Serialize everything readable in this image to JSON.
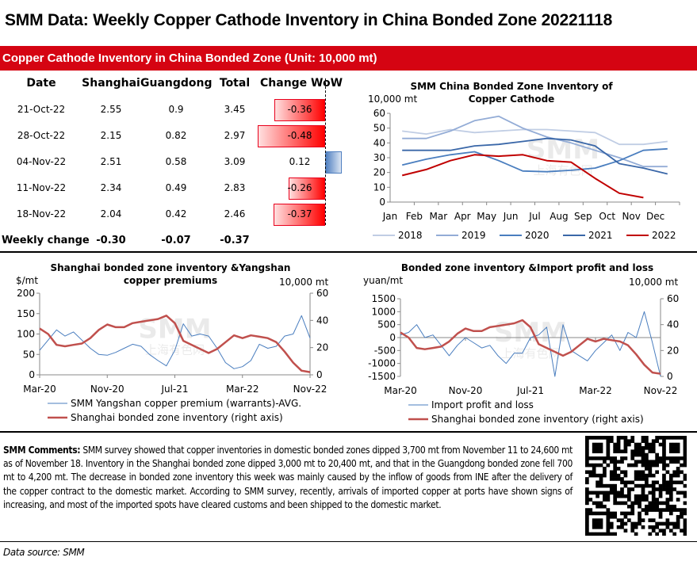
{
  "header": {
    "title": "SMM Data: Weekly Copper Cathode Inventory in China Bonded Zone  20221118",
    "banner": "Copper Cathode Inventory in China Bonded Zone (Unit: 10,000 mt)"
  },
  "table": {
    "columns": [
      "Date",
      "Shanghai",
      "Guangdong",
      "Total",
      "Change WoW"
    ],
    "rows": [
      {
        "date": "21-Oct-22",
        "shanghai": "2.55",
        "guangdong": "0.9",
        "total": "3.45",
        "change": "-0.36",
        "change_value": -0.36
      },
      {
        "date": "28-Oct-22",
        "shanghai": "2.15",
        "guangdong": "0.82",
        "total": "2.97",
        "change": "-0.48",
        "change_value": -0.48
      },
      {
        "date": "04-Nov-22",
        "shanghai": "2.51",
        "guangdong": "0.58",
        "total": "3.09",
        "change": "0.12",
        "change_value": 0.12
      },
      {
        "date": "11-Nov-22",
        "shanghai": "2.34",
        "guangdong": "0.49",
        "total": "2.83",
        "change": "-0.26",
        "change_value": -0.26
      },
      {
        "date": "18-Nov-22",
        "shanghai": "2.04",
        "guangdong": "0.42",
        "total": "2.46",
        "change": "-0.37",
        "change_value": -0.37
      }
    ],
    "weekly": {
      "label": "Weekly change",
      "shanghai": "-0.30",
      "guangdong": "-0.07",
      "total": "-0.37"
    },
    "colors": {
      "negative": "#ff0000",
      "positive": "#4f7fc0"
    }
  },
  "chart_data": [
    {
      "type": "line",
      "title": "SMM China Bonded Zone Inventory of Copper Cathode",
      "ylabel": "10,000 mt",
      "ylim": [
        0,
        60
      ],
      "yticks": [
        0,
        10,
        20,
        30,
        40,
        50,
        60
      ],
      "categories": [
        "Jan",
        "Feb",
        "Mar",
        "Apr",
        "May",
        "Jun",
        "Jul",
        "Aug",
        "Sep",
        "Oct",
        "Nov",
        "Dec"
      ],
      "legend": "bottom",
      "grid": false,
      "series": [
        {
          "name": "2018",
          "color": "#c0cde4",
          "values": [
            48,
            46,
            49,
            47,
            48,
            49,
            49,
            48,
            47,
            39,
            39,
            41
          ]
        },
        {
          "name": "2019",
          "color": "#93acd6",
          "values": [
            43,
            43,
            48,
            55,
            58,
            50,
            44,
            40,
            35,
            30,
            24,
            24
          ]
        },
        {
          "name": "2020",
          "color": "#4a7ebf",
          "values": [
            25,
            29,
            32,
            34,
            28,
            21,
            20.5,
            21.5,
            23,
            28,
            35,
            36
          ]
        },
        {
          "name": "2021",
          "color": "#3a67a8",
          "values": [
            35,
            35,
            35,
            38,
            39,
            41,
            43,
            42,
            38,
            26,
            23,
            19
          ]
        },
        {
          "name": "2022",
          "color": "#c00000",
          "values": [
            18,
            22,
            28,
            32,
            31,
            32,
            28,
            27,
            16,
            6,
            3,
            null
          ]
        }
      ]
    },
    {
      "type": "line",
      "title": "Shanghai bonded zone inventory &Yangshan copper premiums",
      "ylabel": "$/mt",
      "y2label": "10,000 mt",
      "ylim": [
        0,
        200
      ],
      "yticks": [
        0,
        50,
        100,
        150,
        200
      ],
      "y2lim": [
        0,
        60
      ],
      "y2ticks": [
        0,
        20,
        40,
        60
      ],
      "xticks": [
        "Mar-20",
        "Nov-20",
        "Jul-21",
        "Mar-22",
        "Nov-22"
      ],
      "legend": "bottom",
      "grid": false,
      "series": [
        {
          "name": "SMM Yangshan copper premium (warrants)-AVG.",
          "axis": "left",
          "color": "#4a7ebf",
          "values": [
            60,
            85,
            110,
            95,
            105,
            85,
            65,
            50,
            48,
            55,
            65,
            75,
            70,
            50,
            35,
            22,
            60,
            125,
            95,
            100,
            95,
            65,
            30,
            15,
            20,
            35,
            75,
            65,
            70,
            95,
            100,
            145,
            90
          ]
        },
        {
          "name": "Shanghai bonded zone inventory (right axis)",
          "axis": "right",
          "color": "#c0504d",
          "values": [
            34,
            30,
            22,
            21,
            22,
            23,
            27,
            33,
            37,
            35,
            35,
            38,
            39,
            40,
            41,
            43.5,
            38,
            25,
            22,
            19,
            16,
            19,
            24,
            29,
            27,
            29,
            28,
            27,
            24,
            17,
            9,
            3,
            2
          ]
        }
      ]
    },
    {
      "type": "line",
      "title": "Bonded  zone inventory &Import profit and loss",
      "ylabel": "yuan/mt",
      "y2label": "10,000 mt",
      "ylim": [
        -1500,
        1500
      ],
      "yticks": [
        -1500,
        -1000,
        -500,
        0,
        500,
        1000,
        1500
      ],
      "y2lim": [
        0,
        60
      ],
      "y2ticks": [
        0,
        20,
        40,
        60
      ],
      "xticks": [
        "Mar-20",
        "Nov-20",
        "Jul-21",
        "Mar-22",
        "Nov-22"
      ],
      "legend": "bottom",
      "grid": false,
      "series": [
        {
          "name": "Import profit and loss",
          "axis": "left",
          "color": "#4a7ebf",
          "values": [
            100,
            200,
            500,
            0,
            100,
            -300,
            -700,
            -300,
            0,
            -200,
            -400,
            -300,
            -700,
            -1000,
            -600,
            -600,
            0,
            100,
            400,
            -1500,
            500,
            -500,
            -700,
            -900,
            -500,
            -200,
            100,
            -500,
            200,
            0,
            1000,
            -200,
            -1500
          ]
        },
        {
          "name": "Shanghai bonded zone inventory (right axis)",
          "axis": "right",
          "color": "#c0504d",
          "values": [
            34,
            30,
            22,
            21,
            22,
            23,
            27,
            33,
            37,
            35,
            35,
            38,
            39,
            40,
            41,
            43.5,
            38,
            25,
            22,
            19,
            16,
            19,
            24,
            29,
            27,
            29,
            28,
            27,
            24,
            17,
            9,
            3,
            2
          ]
        }
      ]
    }
  ],
  "comments": {
    "label": "SMM Comments:",
    "text": " SMM survey showed that copper inventories in domestic bonded zones dipped 3,700 mt from November 11 to 24,600 mt as of November 18. Inventory in the Shanghai bonded zone dipped 3,000 mt to 20,400 mt, and that in the Guangdong bonded zone fell 700 mt to 4,200 mt. The decrease in bonded zone inventory this week was mainly caused by the inflow of goods from INE after the delivery of the copper contract to the domestic market. According to SMM survey, recently, arrivals of imported copper at ports have shown signs of increasing, and most of the imported spots have cleared customs and been shipped to the domestic market."
  },
  "footer": {
    "source": "Data source: SMM"
  },
  "watermark": "SMM 上海有色网",
  "icons": {
    "qr": "qr-code-icon"
  }
}
